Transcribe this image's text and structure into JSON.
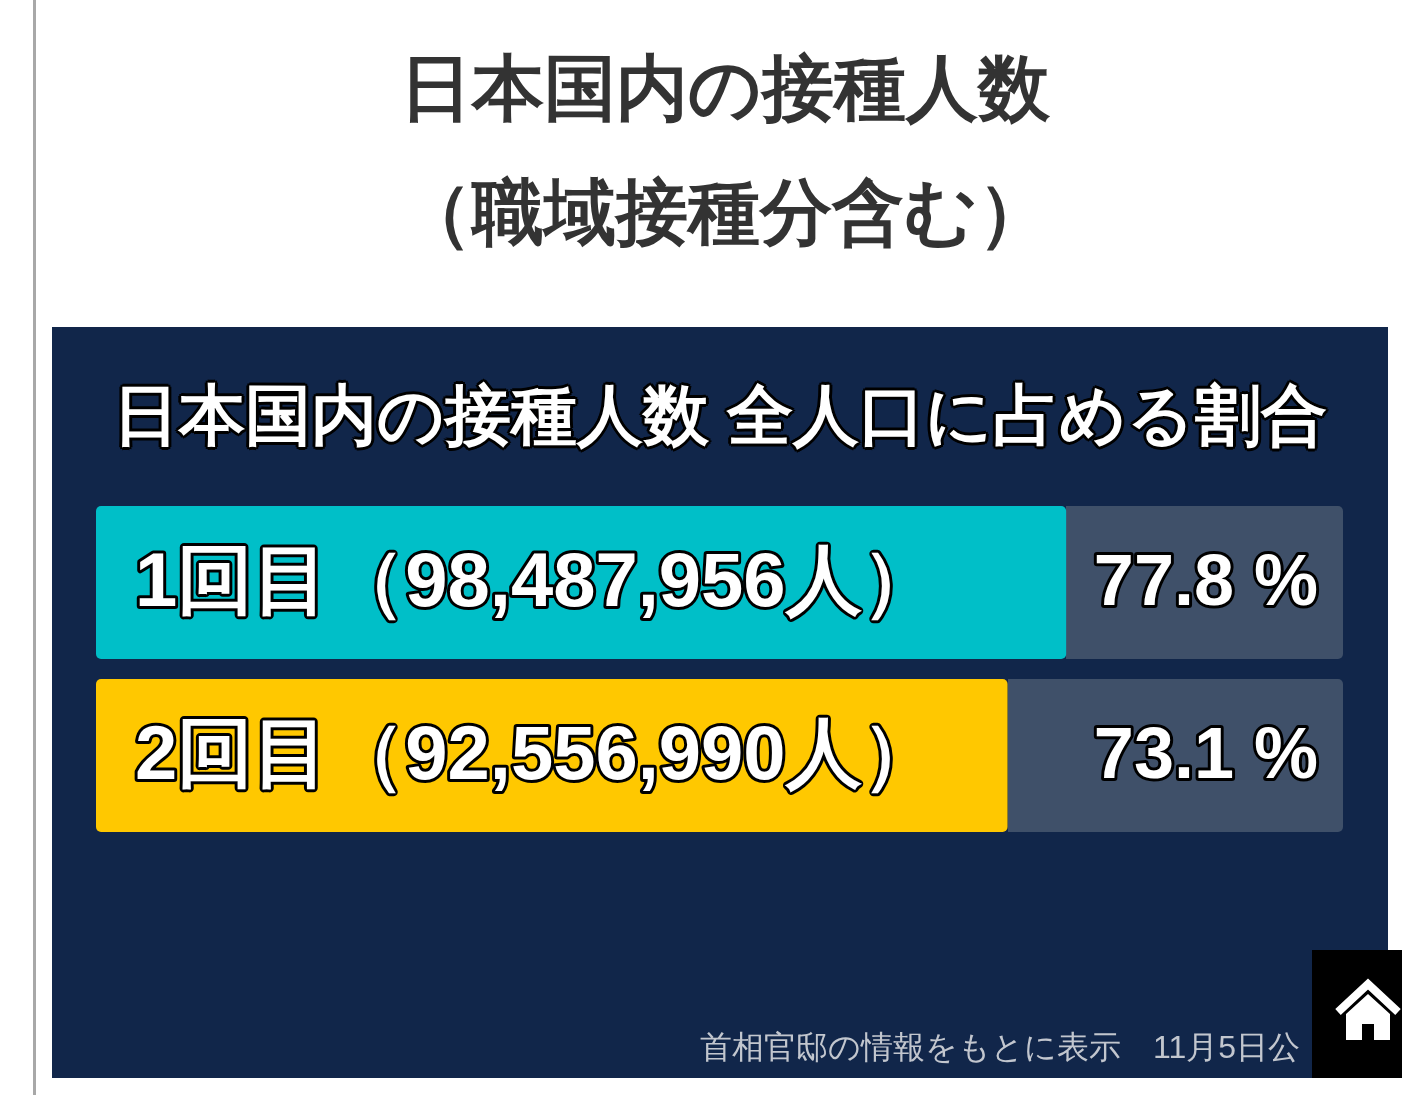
{
  "chart_data": {
    "type": "bar",
    "orientation": "horizontal",
    "title": "日本国内の接種人数（職域接種分含む）",
    "subtitle": "日本国内の接種人数 全人口に占める割合",
    "categories": [
      "1回目（98,487,956人）",
      "2回目（92,556,990人）"
    ],
    "values": [
      77.8,
      73.1
    ],
    "colors": [
      "#00bfc8",
      "#ffc800"
    ],
    "value_labels": [
      "77.8 %",
      "73.1 %"
    ],
    "xlim": [
      0,
      100
    ],
    "tick_labels": "y",
    "annotations": [
      "首相官邸の情報をもとに表示　11月5日公"
    ]
  }
}
